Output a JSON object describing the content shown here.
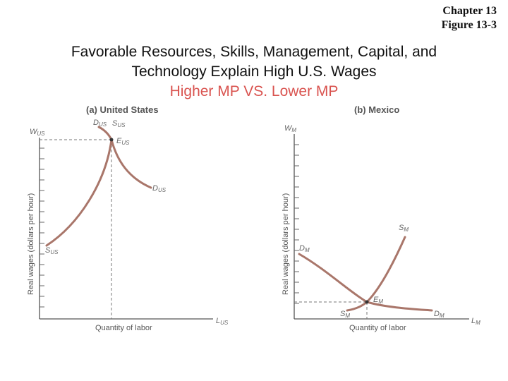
{
  "header": {
    "chapter": "Chapter 13",
    "figure": "Figure 13-3"
  },
  "title": {
    "line1": "Favorable Resources, Skills, Management, Capital, and",
    "line2": "Technology Explain High U.S. Wages",
    "line3": "Higher MP VS. Lower MP"
  },
  "panel_a": {
    "title": "(a) United States",
    "y_axis_label": "Real wages (dollars per hour)",
    "x_axis_label": "Quantity of labor",
    "wage_label": "W",
    "wage_sub": "US",
    "x_end_label": "L",
    "x_end_sub": "US",
    "demand_label": "D",
    "demand_sub": "US",
    "supply_label": "S",
    "supply_sub": "US",
    "equilibrium_label": "E",
    "equilibrium_sub": "US"
  },
  "panel_b": {
    "title": "(b) Mexico",
    "y_axis_label": "Real wages (dollars per hour)",
    "x_axis_label": "Quantity of labor",
    "wage_label": "W",
    "wage_sub": "M",
    "x_end_label": "L",
    "x_end_sub": "M",
    "demand_label": "D",
    "demand_sub": "M",
    "supply_label": "S",
    "supply_sub": "M",
    "equilibrium_label": "E",
    "equilibrium_sub": "M"
  },
  "colors": {
    "title_accent": "#d9534f",
    "curve": "#a9766a",
    "axis": "#555555"
  }
}
